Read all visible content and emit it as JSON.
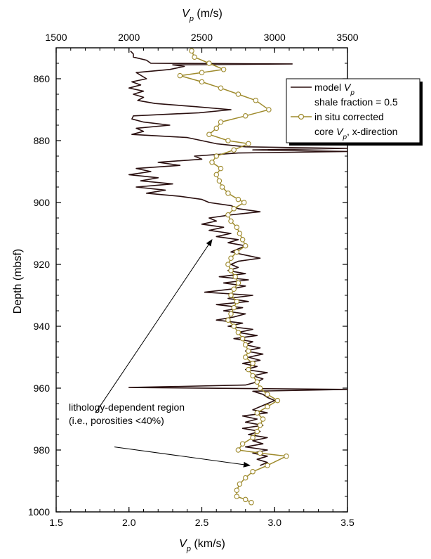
{
  "chart_data": {
    "type": "line",
    "title": "",
    "top_axis": {
      "label_symbol": "V",
      "label_sub": "p",
      "label_unit": " (m/s)",
      "range": [
        1500,
        3500
      ],
      "ticks": [
        "1500",
        "2000",
        "2500",
        "3000",
        "3500"
      ]
    },
    "bottom_axis": {
      "label_symbol": "V",
      "label_sub": "p",
      "label_unit": " (km/s)",
      "range": [
        1.5,
        3.5
      ],
      "ticks": [
        "1.5",
        "2.0",
        "2.5",
        "3.0",
        "3.5"
      ]
    },
    "y_axis": {
      "label": "Depth (mbsf)",
      "range": [
        850,
        1000
      ],
      "inverted": true,
      "ticks": [
        "860",
        "880",
        "900",
        "920",
        "940",
        "960",
        "980",
        "1000"
      ]
    },
    "grid": false,
    "legend_position": "top-right",
    "series": [
      {
        "name_line1_prefix": "model ",
        "name_line1_symbol": "V",
        "name_line1_sub": "p",
        "name_line2": "shale fraction = 0.5",
        "color": "#2a0f0f",
        "marker": "none",
        "points": [
          [
            2.01,
            851
          ],
          [
            2.03,
            852
          ],
          [
            2.03,
            853
          ],
          [
            2.12,
            854
          ],
          [
            2.15,
            855
          ],
          [
            3.12,
            855.2
          ],
          [
            2.3,
            855.5
          ],
          [
            2.38,
            856
          ],
          [
            2.28,
            857
          ],
          [
            2.05,
            858
          ],
          [
            2.12,
            860
          ],
          [
            2.02,
            861
          ],
          [
            2.08,
            862
          ],
          [
            2.0,
            863
          ],
          [
            2.1,
            864
          ],
          [
            2.03,
            865
          ],
          [
            2.1,
            866
          ],
          [
            2.06,
            867
          ],
          [
            2.18,
            868
          ],
          [
            2.45,
            869
          ],
          [
            2.7,
            870
          ],
          [
            2.48,
            871
          ],
          [
            2.03,
            872
          ],
          [
            2.02,
            873
          ],
          [
            2.1,
            874
          ],
          [
            2.28,
            875
          ],
          [
            2.05,
            876
          ],
          [
            2.1,
            877
          ],
          [
            2.02,
            878
          ],
          [
            2.4,
            879
          ],
          [
            2.5,
            880
          ],
          [
            2.6,
            881
          ],
          [
            2.8,
            882
          ],
          [
            3.5,
            882.5
          ],
          [
            2.85,
            883
          ],
          [
            3.5,
            883.5
          ],
          [
            2.75,
            884
          ],
          [
            2.45,
            885
          ],
          [
            2.5,
            886
          ],
          [
            2.2,
            887
          ],
          [
            2.35,
            888
          ],
          [
            2.05,
            889
          ],
          [
            2.15,
            890
          ],
          [
            2.0,
            891
          ],
          [
            2.2,
            892
          ],
          [
            2.08,
            893
          ],
          [
            2.3,
            894
          ],
          [
            2.05,
            895
          ],
          [
            2.25,
            896
          ],
          [
            2.12,
            897
          ],
          [
            2.35,
            898
          ],
          [
            2.5,
            899
          ],
          [
            2.55,
            900
          ],
          [
            2.7,
            901
          ],
          [
            2.75,
            902
          ],
          [
            2.9,
            903
          ],
          [
            2.7,
            904
          ],
          [
            2.55,
            905
          ],
          [
            2.6,
            906
          ],
          [
            2.5,
            907
          ],
          [
            2.65,
            908
          ],
          [
            2.55,
            909
          ],
          [
            2.7,
            910
          ],
          [
            2.6,
            911
          ],
          [
            2.75,
            912
          ],
          [
            2.68,
            913
          ],
          [
            2.8,
            914
          ],
          [
            2.75,
            915
          ],
          [
            2.7,
            916
          ],
          [
            2.8,
            917
          ],
          [
            2.9,
            918
          ],
          [
            2.75,
            919
          ],
          [
            2.7,
            920
          ],
          [
            2.75,
            921
          ],
          [
            2.68,
            922
          ],
          [
            2.8,
            923
          ],
          [
            2.62,
            924
          ],
          [
            2.82,
            925
          ],
          [
            2.65,
            926
          ],
          [
            2.8,
            927
          ],
          [
            2.7,
            928
          ],
          [
            2.52,
            929
          ],
          [
            2.85,
            930
          ],
          [
            2.68,
            931
          ],
          [
            2.82,
            932
          ],
          [
            2.6,
            933
          ],
          [
            2.78,
            934
          ],
          [
            2.65,
            935
          ],
          [
            2.8,
            936
          ],
          [
            2.72,
            937
          ],
          [
            2.6,
            938
          ],
          [
            2.78,
            939
          ],
          [
            2.68,
            940
          ],
          [
            2.85,
            941
          ],
          [
            2.75,
            942
          ],
          [
            2.88,
            943
          ],
          [
            2.72,
            944
          ],
          [
            2.85,
            945
          ],
          [
            2.8,
            946
          ],
          [
            2.9,
            947
          ],
          [
            2.8,
            948
          ],
          [
            2.92,
            949
          ],
          [
            2.82,
            950
          ],
          [
            2.9,
            951
          ],
          [
            2.78,
            952
          ],
          [
            2.88,
            953
          ],
          [
            2.8,
            954
          ],
          [
            2.95,
            955
          ],
          [
            2.85,
            956
          ],
          [
            2.92,
            957
          ],
          [
            2.88,
            958
          ],
          [
            2.8,
            959
          ],
          [
            2.0,
            959.8
          ],
          [
            3.5,
            960.4
          ],
          [
            2.85,
            961
          ],
          [
            2.92,
            962
          ],
          [
            2.95,
            963
          ],
          [
            3.0,
            964
          ],
          [
            2.95,
            965
          ],
          [
            2.9,
            966
          ],
          [
            2.85,
            967
          ],
          [
            2.95,
            968
          ],
          [
            2.78,
            969
          ],
          [
            2.88,
            970
          ],
          [
            2.8,
            971
          ],
          [
            2.92,
            972
          ],
          [
            2.78,
            973
          ],
          [
            2.9,
            974
          ],
          [
            2.82,
            975
          ],
          [
            2.95,
            976
          ],
          [
            2.85,
            977
          ],
          [
            2.92,
            978
          ],
          [
            2.8,
            979
          ],
          [
            2.95,
            980
          ],
          [
            2.85,
            981
          ],
          [
            2.95,
            982
          ],
          [
            2.88,
            983
          ],
          [
            2.95,
            984
          ],
          [
            2.9,
            985
          ]
        ]
      },
      {
        "name_line1": "in situ corrected",
        "name_line2_prefix": "core ",
        "name_line2_symbol": "V",
        "name_line2_sub": "p",
        "name_line2_suffix": ", x-direction",
        "color": "#9e8a2c",
        "marker": "circle",
        "points": [
          [
            2.43,
            851
          ],
          [
            2.45,
            853
          ],
          [
            2.55,
            855
          ],
          [
            2.65,
            857
          ],
          [
            2.5,
            858
          ],
          [
            2.35,
            859
          ],
          [
            2.5,
            861
          ],
          [
            2.63,
            863
          ],
          [
            2.75,
            865
          ],
          [
            2.87,
            867
          ],
          [
            2.96,
            870
          ],
          [
            2.8,
            872
          ],
          [
            2.63,
            874
          ],
          [
            2.6,
            876
          ],
          [
            2.55,
            878
          ],
          [
            2.68,
            880
          ],
          [
            2.82,
            881
          ],
          [
            2.72,
            883
          ],
          [
            2.6,
            885
          ],
          [
            2.57,
            887
          ],
          [
            2.63,
            889
          ],
          [
            2.6,
            891
          ],
          [
            2.62,
            893
          ],
          [
            2.64,
            895
          ],
          [
            2.68,
            897
          ],
          [
            2.75,
            899
          ],
          [
            2.79,
            900
          ],
          [
            2.72,
            902
          ],
          [
            2.68,
            904
          ],
          [
            2.7,
            906
          ],
          [
            2.74,
            908
          ],
          [
            2.76,
            910
          ],
          [
            2.78,
            912
          ],
          [
            2.8,
            914
          ],
          [
            2.74,
            916
          ],
          [
            2.7,
            918
          ],
          [
            2.68,
            920
          ],
          [
            2.7,
            922
          ],
          [
            2.73,
            924
          ],
          [
            2.75,
            926
          ],
          [
            2.72,
            928
          ],
          [
            2.7,
            930
          ],
          [
            2.74,
            932
          ],
          [
            2.72,
            934
          ],
          [
            2.7,
            936
          ],
          [
            2.68,
            938
          ],
          [
            2.72,
            940
          ],
          [
            2.75,
            942
          ],
          [
            2.78,
            944
          ],
          [
            2.8,
            946
          ],
          [
            2.82,
            948
          ],
          [
            2.8,
            950
          ],
          [
            2.85,
            952
          ],
          [
            2.82,
            954
          ],
          [
            2.85,
            956
          ],
          [
            2.88,
            958
          ],
          [
            2.9,
            960
          ],
          [
            2.95,
            962
          ],
          [
            3.02,
            964
          ],
          [
            2.95,
            966
          ],
          [
            2.88,
            968
          ],
          [
            2.92,
            970
          ],
          [
            2.9,
            972
          ],
          [
            2.88,
            974
          ],
          [
            2.85,
            976
          ],
          [
            2.78,
            978
          ],
          [
            2.75,
            980
          ],
          [
            2.9,
            981
          ],
          [
            3.08,
            982
          ],
          [
            2.95,
            985
          ],
          [
            2.85,
            987
          ],
          [
            2.8,
            989
          ],
          [
            2.76,
            991
          ],
          [
            2.74,
            993
          ],
          [
            2.74,
            995
          ],
          [
            2.8,
            996
          ],
          [
            2.84,
            997
          ]
        ]
      }
    ],
    "annotations": {
      "text_line1": "lithology-dependent region",
      "text_line2": "(i.e., porosities <40%)",
      "arrows": [
        {
          "from": [
            1.77,
            968
          ],
          "to": [
            2.57,
            912
          ]
        },
        {
          "from": [
            1.9,
            979
          ],
          "to": [
            2.83,
            985
          ]
        }
      ]
    }
  }
}
